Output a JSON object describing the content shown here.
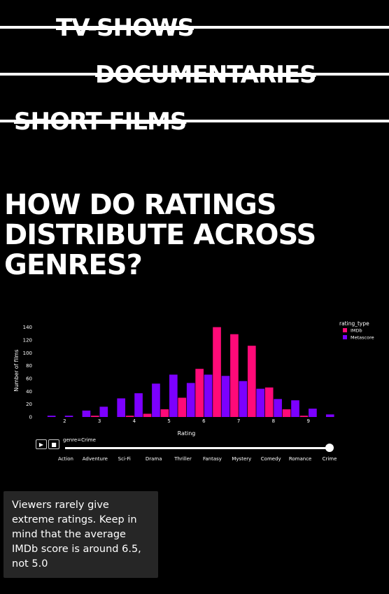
{
  "nav": {
    "items": [
      "TV-SHOWS",
      "DOCUMENTARIES",
      "SHORT FILMS"
    ]
  },
  "headline": "HOW DO RATINGS DISTRIBUTE ACROSS GENRES?",
  "note": "Viewers rarely give extreme ratings. Keep in mind that the average IMDb score is around 6.5, not 5.0",
  "slider": {
    "current_label": "genre=Crime",
    "play_icon": "play-icon",
    "stop_icon": "stop-icon",
    "options": [
      "Action",
      "Adventure",
      "Sci-Fi",
      "Drama",
      "Thriller",
      "Fantasy",
      "Mystery",
      "Comedy",
      "Romance",
      "Crime"
    ],
    "selected": "Crime"
  },
  "colors": {
    "background": "#000000",
    "imdb": "#ff0a78",
    "metascore": "#7c00ff",
    "note_bg": "#262626"
  },
  "chart_data": {
    "type": "bar",
    "xlabel": "Rating",
    "ylabel": "Number of films",
    "legend_title": "rating_type",
    "legend_position": "top-right",
    "xlim": [
      1.25,
      9.75
    ],
    "ylim": [
      0,
      145
    ],
    "xticks": [
      2,
      3,
      4,
      5,
      6,
      7,
      8,
      9
    ],
    "yticks": [
      0,
      20,
      40,
      60,
      80,
      100,
      120,
      140
    ],
    "bin_width": 0.5,
    "x": [
      1.5,
      2,
      2.5,
      3,
      3.5,
      4,
      4.5,
      5,
      5.5,
      6,
      6.5,
      7,
      7.5,
      8,
      8.5,
      9,
      9.5
    ],
    "series": [
      {
        "name": "IMDb",
        "color": "#ff0a78",
        "values": [
          0,
          0,
          0,
          2,
          0,
          2,
          5,
          12,
          30,
          75,
          140,
          129,
          111,
          46,
          12,
          2,
          0
        ]
      },
      {
        "name": "Metascore",
        "color": "#7c00ff",
        "values": [
          2,
          2,
          10,
          16,
          29,
          37,
          52,
          66,
          53,
          66,
          64,
          56,
          44,
          28,
          26,
          13,
          4
        ]
      }
    ]
  }
}
